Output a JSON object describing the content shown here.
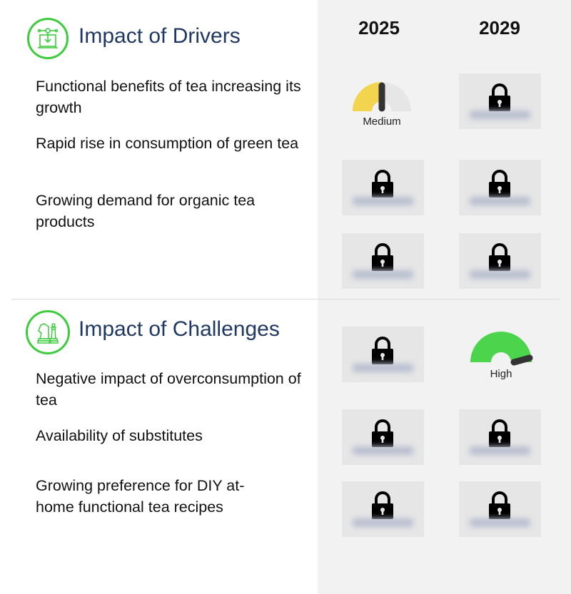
{
  "columns": [
    "2025",
    "2029"
  ],
  "drivers": {
    "title": "Impact of Drivers",
    "icon": "machine-download-icon",
    "items": [
      {
        "label": "Functional benefits of tea increasing its growth",
        "y2025": {
          "locked": false,
          "level": "Medium",
          "value": 0.5,
          "color": "#f2d44e"
        },
        "y2029": {
          "locked": true
        }
      },
      {
        "label": "Rapid rise in consumption of green tea",
        "y2025": {
          "locked": true
        },
        "y2029": {
          "locked": true
        }
      },
      {
        "label": "Growing demand for organic tea products",
        "y2025": {
          "locked": true
        },
        "y2029": {
          "locked": true
        }
      }
    ]
  },
  "challenges": {
    "title": "Impact of Challenges",
    "icon": "chess-pieces-icon",
    "items": [
      {
        "label": "Negative impact of overconsumption of tea",
        "y2025": {
          "locked": true
        },
        "y2029": {
          "locked": false,
          "level": "High",
          "value": 0.95,
          "color": "#4cd44c"
        }
      },
      {
        "label": "Availability of substitutes",
        "y2025": {
          "locked": true
        },
        "y2029": {
          "locked": true
        }
      },
      {
        "label": "Growing preference for DIY at-home functional tea recipes",
        "y2025": {
          "locked": true
        },
        "y2029": {
          "locked": true
        }
      }
    ]
  },
  "colors": {
    "accent_green": "#3dcc3d",
    "title_navy": "#1f3864",
    "panel_bg": "#f2f2f2"
  }
}
